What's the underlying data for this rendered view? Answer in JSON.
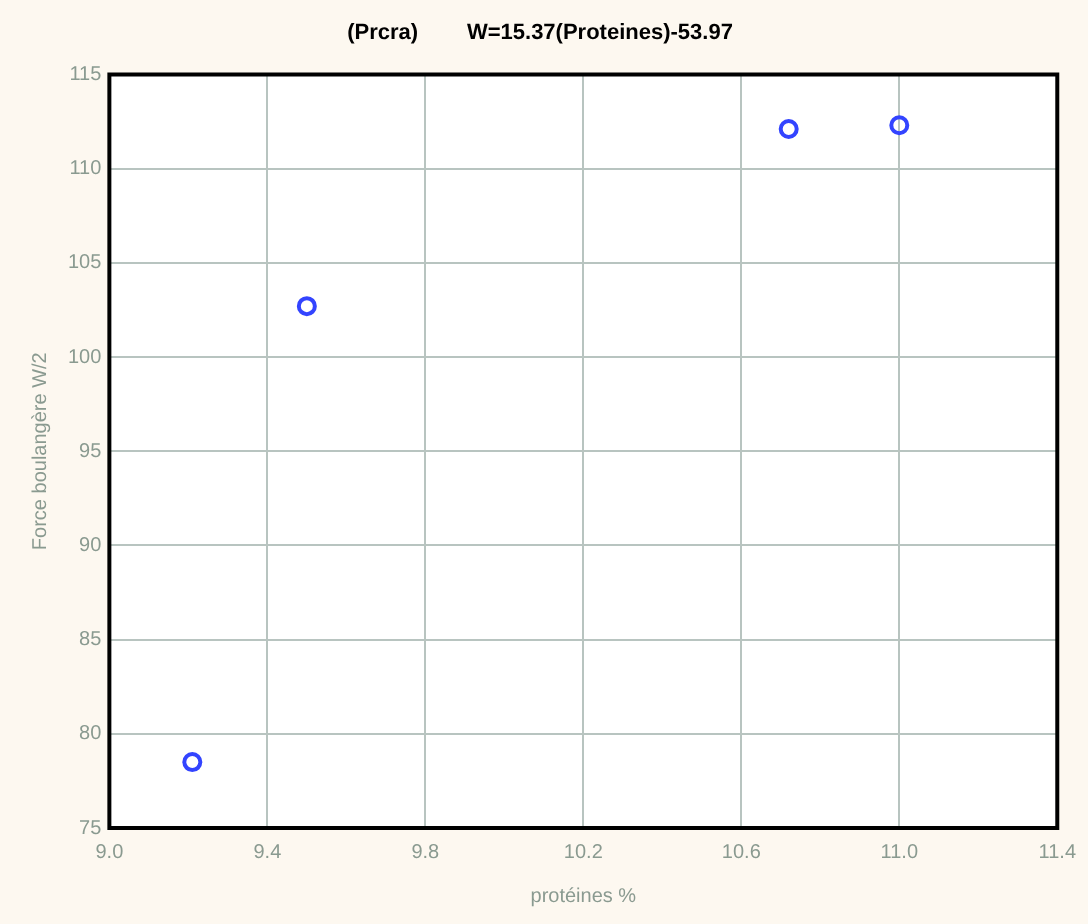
{
  "chart_data": {
    "type": "scatter",
    "title": "(Prcra)        W=15.37(Proteines)-53.97",
    "xlabel": "protéines %",
    "ylabel": "Force boulangère W/2",
    "x": [
      9.21,
      9.5,
      10.72,
      11.0
    ],
    "series": [
      {
        "color": "#3344ff",
        "values": [
          78.5,
          102.7,
          112.1,
          112.3
        ]
      }
    ],
    "xlim": [
      9.0,
      11.4
    ],
    "xticks": [
      {
        "value": 9.0,
        "label": "9.0"
      },
      9.4,
      9.8,
      10.2,
      10.6,
      {
        "value": 11.0,
        "label": "11.0"
      },
      11.4
    ],
    "ylim": [
      75,
      115
    ],
    "yticks": [
      75,
      80,
      85,
      90,
      95,
      100,
      105,
      110,
      115
    ],
    "grid": true,
    "legend": false,
    "marker": "circle"
  }
}
